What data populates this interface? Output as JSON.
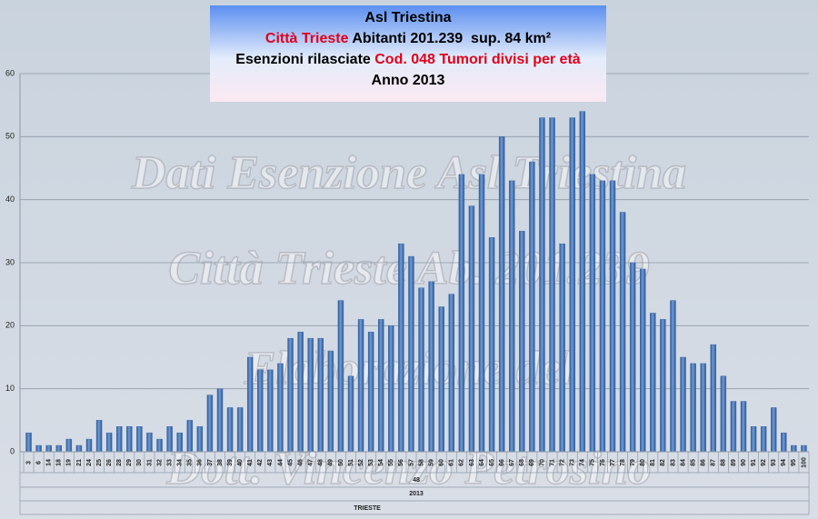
{
  "chart_data": {
    "type": "bar",
    "title_lines": [
      [
        {
          "text": "Asl Triestina",
          "color": "#000000"
        }
      ],
      [
        {
          "text": "Città Trieste",
          "color": "#e0001b"
        },
        {
          "text": " Abitanti 201.239  sup. 84 km²",
          "color": "#000000"
        }
      ],
      [
        {
          "text": "Esenzioni rilasciate ",
          "color": "#000000"
        },
        {
          "text": "Cod. 048 Tumori divisi per età",
          "color": "#e0001b"
        }
      ],
      [
        {
          "text": "Anno 2013",
          "color": "#000000"
        }
      ]
    ],
    "watermarks": [
      "Dati Esenzione Asl Triestina",
      "Città Trieste Ab. 201.239",
      "Elaborazione del",
      "Dott. Vincenzo Petrosino"
    ],
    "categories": [
      "3",
      "6",
      "14",
      "18",
      "19",
      "21",
      "24",
      "25",
      "26",
      "28",
      "29",
      "30",
      "31",
      "32",
      "33",
      "34",
      "35",
      "36",
      "37",
      "38",
      "39",
      "40",
      "41",
      "42",
      "43",
      "44",
      "45",
      "46",
      "47",
      "48",
      "49",
      "50",
      "51",
      "52",
      "53",
      "54",
      "55",
      "56",
      "57",
      "58",
      "59",
      "60",
      "61",
      "62",
      "63",
      "64",
      "65",
      "66",
      "67",
      "68",
      "69",
      "70",
      "71",
      "72",
      "73",
      "74",
      "75",
      "76",
      "77",
      "78",
      "79",
      "80",
      "81",
      "82",
      "83",
      "84",
      "85",
      "86",
      "87",
      "88",
      "89",
      "90",
      "91",
      "92",
      "93",
      "94",
      "95",
      "100"
    ],
    "values": [
      3,
      1,
      1,
      1,
      2,
      1,
      2,
      5,
      3,
      4,
      4,
      4,
      3,
      2,
      4,
      3,
      5,
      4,
      9,
      10,
      7,
      7,
      15,
      13,
      13,
      14,
      18,
      19,
      18,
      18,
      16,
      24,
      12,
      21,
      19,
      21,
      20,
      33,
      31,
      26,
      27,
      23,
      25,
      44,
      39,
      44,
      34,
      50,
      43,
      35,
      46,
      53,
      53,
      33,
      53,
      54,
      44,
      43,
      43,
      38,
      30,
      29,
      22,
      21,
      24,
      15,
      14,
      14,
      17,
      12,
      8,
      8,
      4,
      4,
      7,
      3,
      1,
      1
    ],
    "category_groups": [
      "48",
      "2013",
      "TRIESTE"
    ],
    "color": "#3f6fb0",
    "ylim": [
      0,
      60
    ],
    "yticks": [
      0,
      10,
      20,
      30,
      40,
      50,
      60
    ],
    "grid": true
  }
}
